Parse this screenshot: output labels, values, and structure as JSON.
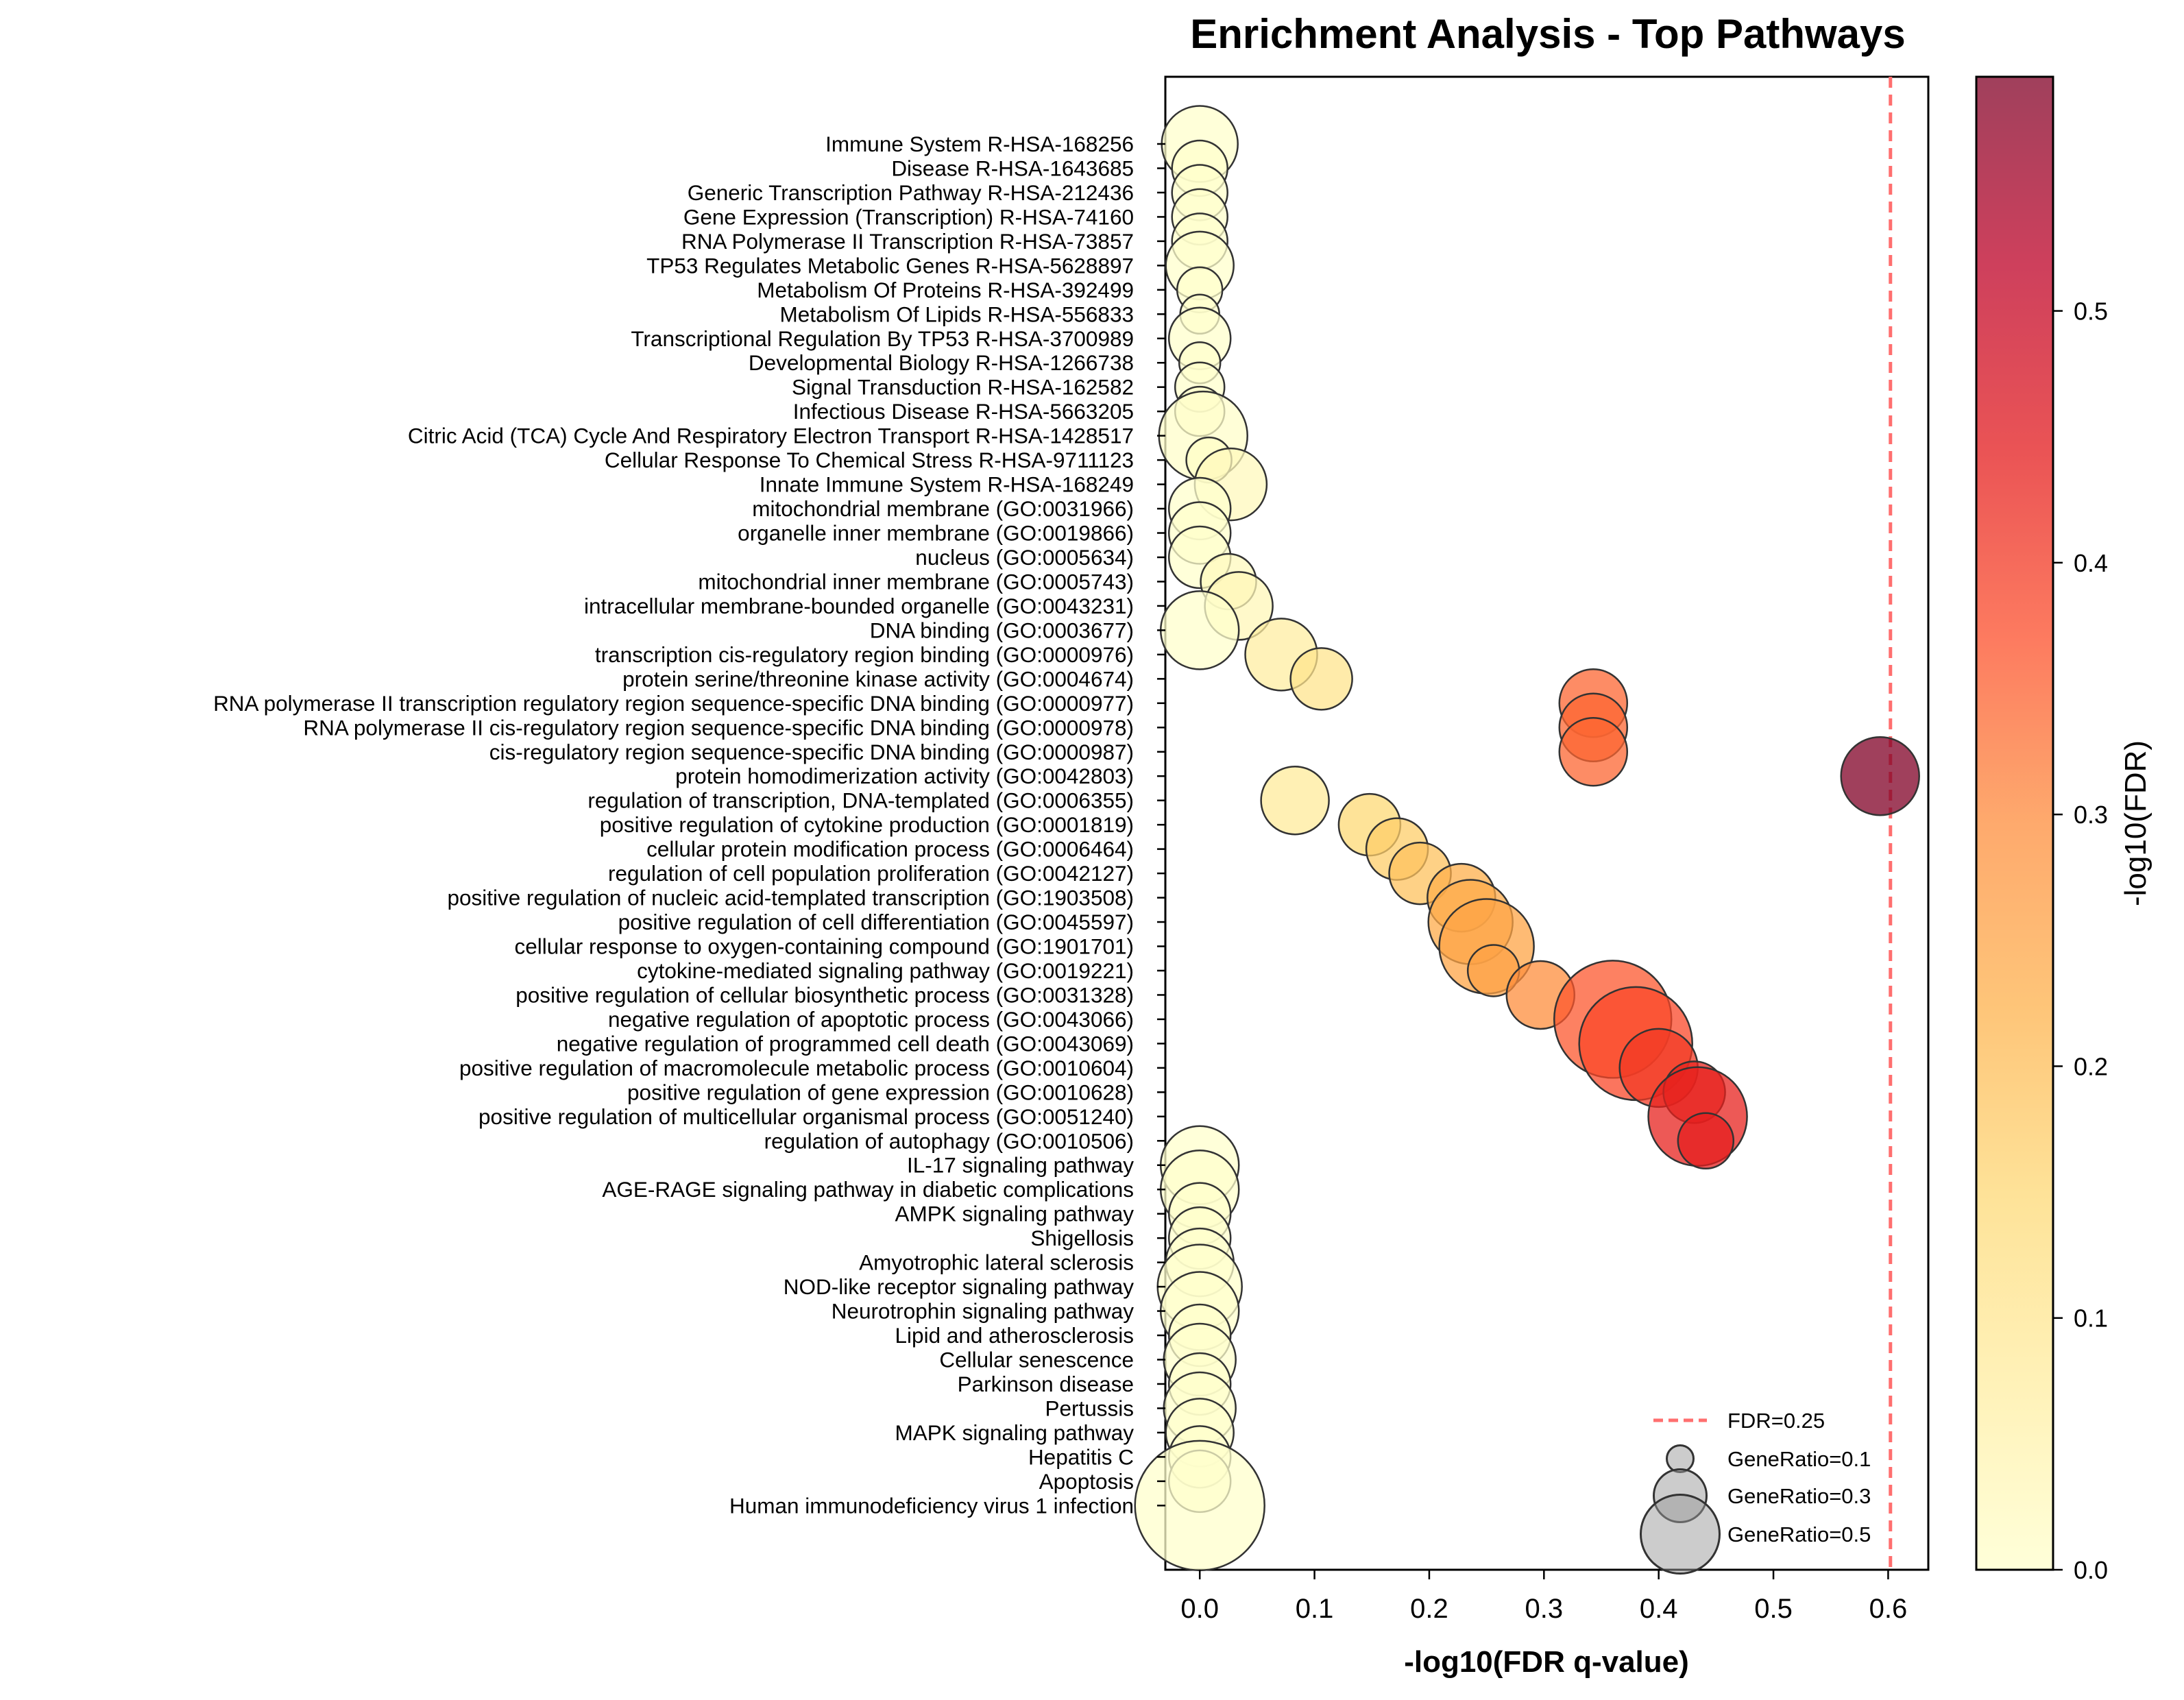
{
  "chart_data": {
    "type": "scatter",
    "title": "Enrichment Analysis - Top Pathways",
    "xlabel": "-log10(FDR q-value)",
    "xlim": [
      -0.03,
      0.635
    ],
    "xticks": [
      0.0,
      0.1,
      0.2,
      0.3,
      0.4,
      0.5,
      0.6
    ],
    "xtick_labels": [
      "0.0",
      "0.1",
      "0.2",
      "0.3",
      "0.4",
      "0.5",
      "0.6"
    ],
    "reference_line": {
      "x": 0.602,
      "label": "FDR=0.25",
      "color": "#ff6f6f",
      "style": "dashed"
    },
    "colorbar": {
      "label": "-log10(FDR)",
      "range": [
        0.0,
        0.593
      ],
      "ticks": [
        0.0,
        0.1,
        0.2,
        0.3,
        0.4,
        0.5
      ],
      "tick_labels": [
        "0.0",
        "0.1",
        "0.2",
        "0.3",
        "0.4",
        "0.5"
      ],
      "colormap": "YlOrRd",
      "colors": [
        "#ffffcc",
        "#ffeda0",
        "#fed976",
        "#feb24c",
        "#fd8d3c",
        "#fc4e2a",
        "#e31a1c",
        "#bd0026",
        "#800026"
      ]
    },
    "size_legend": [
      {
        "label": "GeneRatio=0.1",
        "gene_ratio": 0.1
      },
      {
        "label": "GeneRatio=0.3",
        "gene_ratio": 0.3
      },
      {
        "label": "GeneRatio=0.5",
        "gene_ratio": 0.5
      }
    ],
    "legend_position": "lower-right",
    "grid": false,
    "points": [
      {
        "term": "Immune System R-HSA-168256",
        "x": 0.0,
        "gene_ratio": 0.29
      },
      {
        "term": "Disease R-HSA-1643685",
        "x": 0.0,
        "gene_ratio": 0.19
      },
      {
        "term": "Generic Transcription Pathway R-HSA-212436",
        "x": 0.0,
        "gene_ratio": 0.19
      },
      {
        "term": "Gene Expression (Transcription) R-HSA-74160",
        "x": 0.0,
        "gene_ratio": 0.19
      },
      {
        "term": "RNA Polymerase II Transcription R-HSA-73857",
        "x": 0.0,
        "gene_ratio": 0.19
      },
      {
        "term": "TP53 Regulates Metabolic Genes R-HSA-5628897",
        "x": 0.0,
        "gene_ratio": 0.25
      },
      {
        "term": "Metabolism Of Proteins R-HSA-392499",
        "x": 0.0,
        "gene_ratio": 0.14
      },
      {
        "term": "Metabolism Of Lipids R-HSA-556833",
        "x": 0.0,
        "gene_ratio": 0.11
      },
      {
        "term": "Transcriptional Regulation By TP53 R-HSA-3700989",
        "x": 0.0,
        "gene_ratio": 0.22
      },
      {
        "term": "Developmental Biology R-HSA-1266738",
        "x": 0.0,
        "gene_ratio": 0.12
      },
      {
        "term": "Signal Transduction R-HSA-162582",
        "x": 0.0,
        "gene_ratio": 0.16
      },
      {
        "term": "Infectious Disease R-HSA-5663205",
        "x": 0.0,
        "gene_ratio": 0.16
      },
      {
        "term": "Citric Acid (TCA) Cycle And Respiratory Electron Transport R-HSA-1428517",
        "x": 0.003,
        "gene_ratio": 0.35
      },
      {
        "term": "Cellular Response To Chemical Stress R-HSA-9711123",
        "x": 0.008,
        "gene_ratio": 0.14
      },
      {
        "term": "Innate Immune System R-HSA-168249",
        "x": 0.027,
        "gene_ratio": 0.27
      },
      {
        "term": "mitochondrial membrane (GO:0031966)",
        "x": 0.0,
        "gene_ratio": 0.22
      },
      {
        "term": "organelle inner membrane (GO:0019866)",
        "x": 0.0,
        "gene_ratio": 0.22
      },
      {
        "term": "nucleus (GO:0005634)",
        "x": 0.0,
        "gene_ratio": 0.22
      },
      {
        "term": "mitochondrial inner membrane (GO:0005743)",
        "x": 0.025,
        "gene_ratio": 0.19
      },
      {
        "term": "intracellular membrane-bounded organelle (GO:0043231)",
        "x": 0.034,
        "gene_ratio": 0.25
      },
      {
        "term": "DNA binding (GO:0003677)",
        "x": 0.0,
        "gene_ratio": 0.3
      },
      {
        "term": "transcription cis-regulatory region binding (GO:0000976)",
        "x": 0.071,
        "gene_ratio": 0.27
      },
      {
        "term": "protein serine/threonine kinase activity (GO:0004674)",
        "x": 0.106,
        "gene_ratio": 0.22
      },
      {
        "term": "RNA polymerase II transcription regulatory region sequence-specific DNA binding (GO:0000977)",
        "x": 0.343,
        "gene_ratio": 0.25
      },
      {
        "term": "RNA polymerase II cis-regulatory region sequence-specific DNA binding (GO:0000978)",
        "x": 0.343,
        "gene_ratio": 0.25
      },
      {
        "term": "cis-regulatory region sequence-specific DNA binding (GO:0000987)",
        "x": 0.343,
        "gene_ratio": 0.25
      },
      {
        "term": "protein homodimerization activity (GO:0042803)",
        "x": 0.593,
        "gene_ratio": 0.3
      },
      {
        "term": "regulation of transcription, DNA-templated (GO:0006355)",
        "x": 0.083,
        "gene_ratio": 0.25
      },
      {
        "term": "positive regulation of cytokine production (GO:0001819)",
        "x": 0.148,
        "gene_ratio": 0.22
      },
      {
        "term": "cellular protein modification process (GO:0006464)",
        "x": 0.172,
        "gene_ratio": 0.22
      },
      {
        "term": "regulation of cell population proliferation (GO:0042127)",
        "x": 0.192,
        "gene_ratio": 0.22
      },
      {
        "term": "positive regulation of nucleic acid-templated transcription (GO:1903508)",
        "x": 0.228,
        "gene_ratio": 0.25
      },
      {
        "term": "positive regulation of cell differentiation (GO:0045597)",
        "x": 0.236,
        "gene_ratio": 0.33
      },
      {
        "term": "cellular response to oxygen-containing compound (GO:1901701)",
        "x": 0.25,
        "gene_ratio": 0.38
      },
      {
        "term": "cytokine-mediated signaling pathway (GO:0019221)",
        "x": 0.256,
        "gene_ratio": 0.17
      },
      {
        "term": "positive regulation of cellular biosynthetic process (GO:0031328)",
        "x": 0.297,
        "gene_ratio": 0.25
      },
      {
        "term": "negative regulation of apoptotic process (GO:0043066)",
        "x": 0.36,
        "gene_ratio": 0.49
      },
      {
        "term": "negative regulation of programmed cell death (GO:0043069)",
        "x": 0.38,
        "gene_ratio": 0.47
      },
      {
        "term": "positive regulation of macromolecule metabolic process (GO:0010604)",
        "x": 0.4,
        "gene_ratio": 0.3
      },
      {
        "term": "positive regulation of gene expression (GO:0010628)",
        "x": 0.431,
        "gene_ratio": 0.22
      },
      {
        "term": "positive regulation of multicellular organismal process (GO:0051240)",
        "x": 0.434,
        "gene_ratio": 0.4
      },
      {
        "term": "regulation of autophagy (GO:0010506)",
        "x": 0.441,
        "gene_ratio": 0.19
      },
      {
        "term": "IL-17 signaling pathway",
        "x": 0.0,
        "gene_ratio": 0.3
      },
      {
        "term": "AGE-RAGE signaling pathway in diabetic complications",
        "x": 0.0,
        "gene_ratio": 0.3
      },
      {
        "term": "AMPK signaling pathway",
        "x": 0.0,
        "gene_ratio": 0.22
      },
      {
        "term": "Shigellosis",
        "x": 0.0,
        "gene_ratio": 0.22
      },
      {
        "term": "Amyotrophic lateral sclerosis",
        "x": 0.0,
        "gene_ratio": 0.25
      },
      {
        "term": "NOD-like receptor signaling pathway",
        "x": 0.0,
        "gene_ratio": 0.33
      },
      {
        "term": "Neurotrophin signaling pathway",
        "x": 0.0,
        "gene_ratio": 0.3
      },
      {
        "term": "Lipid and atherosclerosis",
        "x": 0.0,
        "gene_ratio": 0.22
      },
      {
        "term": "Cellular senescence",
        "x": 0.0,
        "gene_ratio": 0.27
      },
      {
        "term": "Parkinson disease",
        "x": 0.0,
        "gene_ratio": 0.22
      },
      {
        "term": "Pertussis",
        "x": 0.0,
        "gene_ratio": 0.27
      },
      {
        "term": "MAPK signaling pathway",
        "x": 0.0,
        "gene_ratio": 0.25
      },
      {
        "term": "Hepatitis C",
        "x": 0.0,
        "gene_ratio": 0.22
      },
      {
        "term": "Apoptosis",
        "x": 0.0,
        "gene_ratio": 0.22
      },
      {
        "term": "Human immunodeficiency virus 1 infection",
        "x": 0.0,
        "gene_ratio": 0.55
      }
    ]
  }
}
